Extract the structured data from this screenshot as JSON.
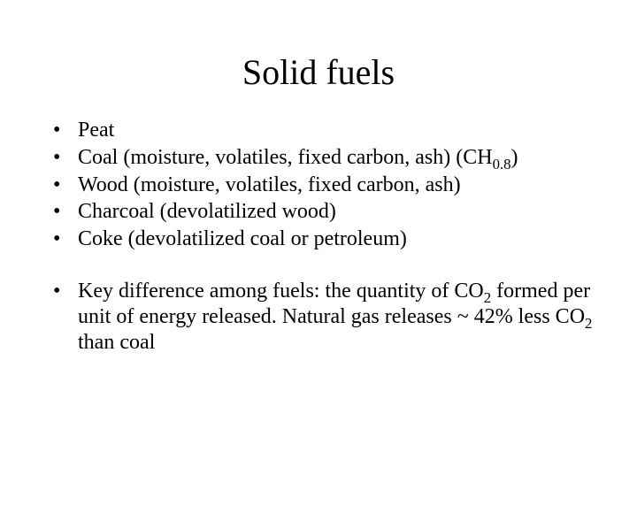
{
  "title": "Solid fuels",
  "bullets_group1": [
    {
      "text": "Peat"
    },
    {
      "pre": "Coal (moisture, volatiles, fixed carbon, ash) (CH",
      "sub": "0.8",
      "post": ")"
    },
    {
      "text": "Wood (moisture, volatiles, fixed carbon, ash)"
    },
    {
      "text": "Charcoal (devolatilized wood)"
    },
    {
      "text": "Coke (devolatilized coal or petroleum)"
    }
  ],
  "bullets_group2": [
    {
      "seg1": "Key difference among fuels: the quantity of CO",
      "sub1": "2",
      "seg2": " formed per unit of energy released. Natural gas releases ~ 42% less CO",
      "sub2": "2",
      "seg3": " than coal"
    }
  ],
  "style": {
    "background_color": "#ffffff",
    "text_color": "#000000",
    "font_family": "Times New Roman",
    "title_fontsize": 40,
    "body_fontsize": 24
  }
}
